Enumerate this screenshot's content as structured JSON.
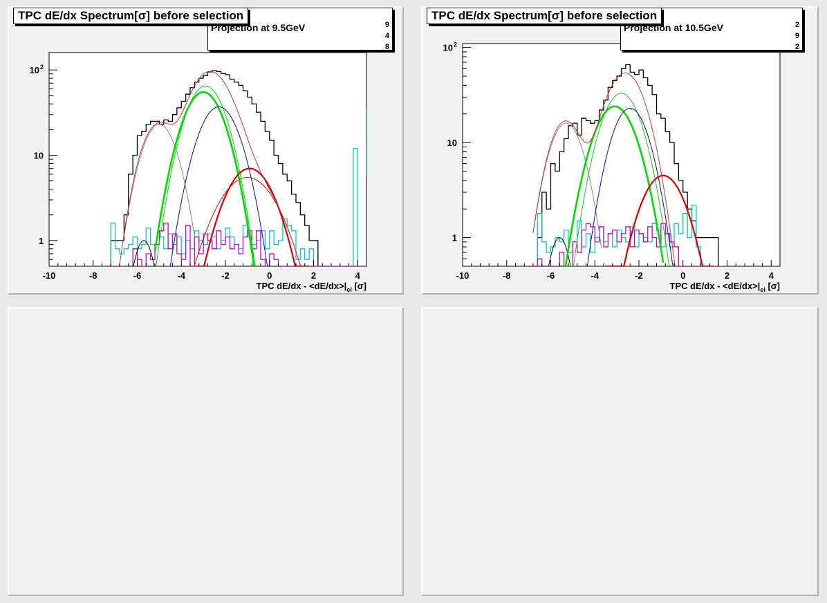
{
  "pads": [
    {
      "title": "TPC dE/dx Spectrum[σ] before selection",
      "stat_label": "Projection at 9.5GeV",
      "stat_digits": [
        "9",
        "4",
        "8"
      ],
      "xtitle": "TPC dE/dx - <dE/dx>|el [σ]"
    },
    {
      "title": "TPC dE/dx Spectrum[σ] before selection",
      "stat_label": "Projection at 10.5GeV",
      "stat_digits": [
        "2",
        "9",
        "2"
      ],
      "xtitle": "TPC dE/dx - <dE/dx>|el [σ]"
    }
  ],
  "chart_data": [
    {
      "type": "line",
      "title": "TPC dE/dx Spectrum[σ] before selection",
      "xlabel": "TPC dE/dx - <dE/dx>|el [σ]",
      "ylabel": "",
      "xlim": [
        -10,
        4.4
      ],
      "ylim": [
        0.5,
        160
      ],
      "yscale": "log",
      "x_ticks": [
        "-10",
        "-8",
        "-6",
        "-4",
        "-2",
        "0",
        "2",
        "4"
      ],
      "y_ticks": [
        "1",
        "10",
        "10^2"
      ],
      "histograms": [
        {
          "color": "#000000",
          "x_start": -7.4,
          "bin_width": 0.2,
          "values": [
            0.5,
            1,
            1,
            1,
            2,
            6,
            10,
            17,
            19,
            23,
            25,
            25,
            23,
            26,
            25,
            30,
            36,
            43,
            52,
            62,
            72,
            80,
            86,
            95,
            98,
            96,
            91,
            88,
            78,
            72,
            66,
            57,
            48,
            40,
            32,
            25,
            19,
            15,
            10,
            8,
            6,
            5,
            3.5,
            2.8,
            2,
            1.5,
            1,
            1
          ]
        },
        {
          "color": "#00cccc",
          "x_start": -7.4,
          "bin_width": 0.2,
          "values": [
            0.5,
            1.6,
            0.8,
            0.7,
            0.8,
            0.9,
            1.1,
            0.8,
            0.9,
            1.4,
            0.9,
            0.9,
            1.1,
            0.8,
            1.2,
            0.9,
            1.1,
            0.7,
            1,
            0.8,
            1.3,
            1,
            0.9,
            1.2,
            1.1,
            0.8,
            1,
            1.4,
            1.1,
            0.9,
            0.8,
            1.5,
            1.1,
            0.9,
            1,
            1.3,
            0.8,
            1.3,
            0.9,
            1,
            1.8,
            1.5,
            1.3,
            0.6,
            0.8,
            0.6,
            0.8,
            0.5,
            0.5,
            0.5,
            0.5,
            0.5,
            0.5,
            0.5,
            0.5,
            0.5,
            12,
            0.5,
            0.5,
            35,
            0.5,
            0.5
          ]
        },
        {
          "color": "#cc00cc",
          "x_start": -7.4,
          "bin_width": 0.2,
          "values": [
            0.5,
            0.5,
            0.5,
            0.5,
            0.5,
            0.5,
            0.8,
            0.6,
            0.5,
            0.7,
            0.6,
            0.9,
            1.3,
            1.6,
            0.8,
            1.2,
            0.7,
            0.6,
            1.5,
            0.5,
            1.1,
            0.7,
            1.2,
            1,
            0.8,
            1.3,
            0.9,
            1.1,
            0.8,
            0.9,
            0.7,
            1.1,
            1.3,
            0.8,
            1.3,
            0.6,
            0.5,
            0.7,
            0.6,
            0.5,
            0.5,
            0.5,
            0.5,
            0.5,
            0.5,
            0.5,
            0.5,
            0.5,
            0.5,
            0.5,
            0.5,
            0.5,
            0.5,
            0.5,
            0.5,
            0.5,
            0.5,
            0.5,
            0.5,
            5.5,
            0.5,
            0.5
          ]
        }
      ],
      "gaussians": [
        {
          "color": "#000000",
          "mean": -5.7,
          "sigma": 0.4,
          "amp": 1.0,
          "xmin": -6.6,
          "xmax": -4.8,
          "width": 1
        },
        {
          "color": "#888888",
          "mean": -5.0,
          "sigma": 0.65,
          "amp": 23,
          "xmin": -6.6,
          "xmax": -3.4,
          "width": 1
        },
        {
          "color": "#00dd00",
          "mean": -3.0,
          "sigma": 0.75,
          "amp": 55,
          "xmin": -5.2,
          "xmax": -0.5,
          "width": 2.6
        },
        {
          "color": "#00dd00",
          "mean": -2.9,
          "sigma": 0.72,
          "amp": 65,
          "xmin": -5.2,
          "xmax": -0.6,
          "width": 1
        },
        {
          "color": "#0000cc",
          "mean": -2.3,
          "sigma": 0.75,
          "amp": 37,
          "xmin": -4.8,
          "xmax": 0.2,
          "width": 1
        },
        {
          "color": "#dd0000",
          "mean": -0.9,
          "sigma": 0.9,
          "amp": 7,
          "xmin": -3.3,
          "xmax": 1.8,
          "width": 2.2
        },
        {
          "color": "#dd0000",
          "mean": -1.0,
          "sigma": 1.1,
          "amp": 5.5,
          "xmin": -3.8,
          "xmax": 1.8,
          "width": 1
        }
      ],
      "total_fit": {
        "color": "#cc3333",
        "xmin": -7.3,
        "xmax": 1.8
      }
    },
    {
      "type": "line",
      "title": "TPC dE/dx Spectrum[σ] before selection",
      "xlabel": "TPC dE/dx - <dE/dx>|el [σ]",
      "ylabel": "",
      "xlim": [
        -10,
        4.4
      ],
      "ylim": [
        0.5,
        110
      ],
      "yscale": "log",
      "x_ticks": [
        "-10",
        "-8",
        "-6",
        "-4",
        "-2",
        "0",
        "2",
        "4"
      ],
      "y_ticks": [
        "1",
        "10",
        "10^2"
      ],
      "histograms": [
        {
          "color": "#000000",
          "x_start": -6.8,
          "bin_width": 0.2,
          "values": [
            0.5,
            1,
            3,
            2,
            6,
            5,
            8,
            11,
            15,
            16,
            12,
            18,
            17,
            16,
            17,
            22,
            28,
            38,
            45,
            50,
            60,
            66,
            55,
            52,
            58,
            48,
            40,
            32,
            20,
            18,
            13,
            10,
            6,
            4,
            3,
            2,
            1.5,
            1,
            1,
            1,
            1,
            1
          ]
        },
        {
          "color": "#00cccc",
          "x_start": -6.8,
          "bin_width": 0.2,
          "values": [
            0.5,
            1.8,
            0.9,
            0.7,
            0.8,
            1,
            0.9,
            1.2,
            0.7,
            0.9,
            1.5,
            0.8,
            1.1,
            0.7,
            1,
            1.3,
            0.9,
            1.1,
            0.8,
            1.2,
            1,
            0.9,
            1.3,
            0.8,
            1.1,
            1,
            0.9,
            1.4,
            1.2,
            0.8,
            1.1,
            0.8,
            1.4,
            1.1,
            1.8,
            1,
            2.2,
            0.8,
            0.5,
            0.5,
            0.5,
            0.5,
            0.5
          ]
        },
        {
          "color": "#cc00cc",
          "x_start": -6.8,
          "bin_width": 0.2,
          "values": [
            0.5,
            0.6,
            0.5,
            0.5,
            0.5,
            0.5,
            0.7,
            0.5,
            0.5,
            0.9,
            0.7,
            1.2,
            1.4,
            1.3,
            0.9,
            1.3,
            0.8,
            1.1,
            1.2,
            0.9,
            1.1,
            1.3,
            0.8,
            1.2,
            1.1,
            0.9,
            1.3,
            1,
            0.8,
            1.4,
            1.1,
            0.9,
            0.8,
            0.5,
            0.5,
            0.5,
            0.5,
            0.5,
            0.5,
            0.5,
            0.5,
            0.5
          ]
        }
      ],
      "gaussians": [
        {
          "color": "#000000",
          "mean": -5.6,
          "sigma": 0.42,
          "amp": 1.0,
          "xmin": -6.5,
          "xmax": -4.7,
          "width": 1
        },
        {
          "color": "#888888",
          "mean": -5.3,
          "sigma": 0.65,
          "amp": 16,
          "xmin": -6.8,
          "xmax": -3.7,
          "width": 1
        },
        {
          "color": "#00dd00",
          "mean": -3.1,
          "sigma": 0.8,
          "amp": 24,
          "xmin": -5.6,
          "xmax": -0.9,
          "width": 2.6
        },
        {
          "color": "#00dd00",
          "mean": -2.8,
          "sigma": 0.75,
          "amp": 33,
          "xmin": -5.2,
          "xmax": -0.6,
          "width": 1
        },
        {
          "color": "#0000cc",
          "mean": -2.4,
          "sigma": 0.7,
          "amp": 23,
          "xmin": -4.8,
          "xmax": -0.1,
          "width": 1
        },
        {
          "color": "#dd0000",
          "mean": -0.9,
          "sigma": 0.85,
          "amp": 4.5,
          "xmin": -3.5,
          "xmax": 1.4,
          "width": 2.2
        }
      ],
      "total_fit": {
        "color": "#cc3333",
        "xmin": -6.8,
        "xmax": 1.6
      }
    }
  ]
}
